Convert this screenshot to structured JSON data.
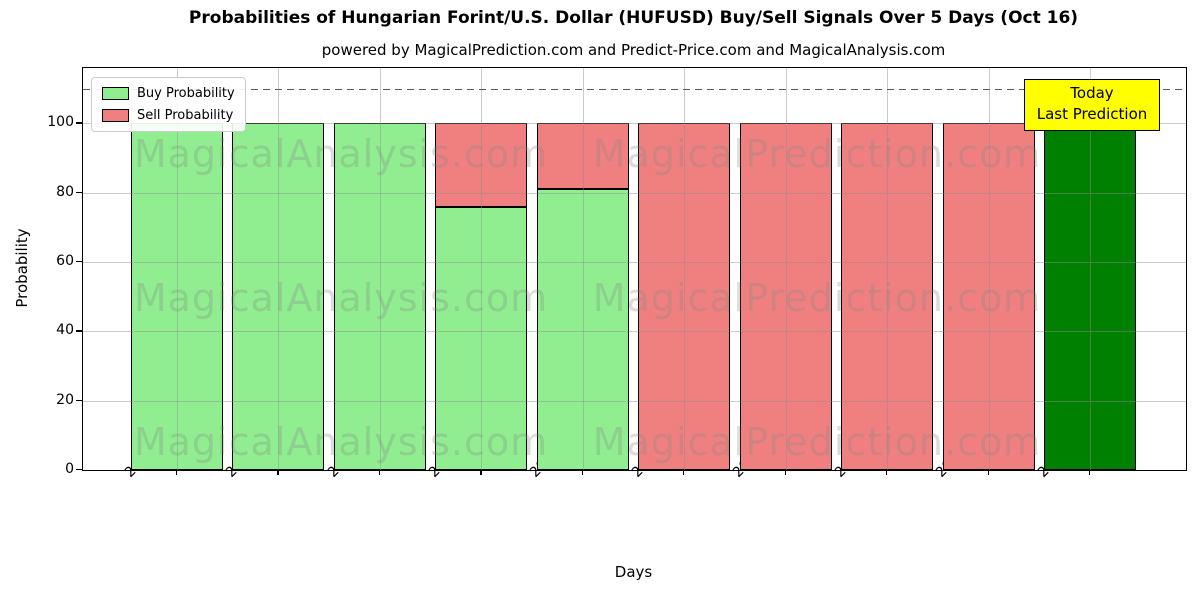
{
  "title": "Probabilities of Hungarian Forint/U.S. Dollar (HUFUSD) Buy/Sell Signals Over 5 Days (Oct 16)",
  "subtitle": "powered by MagicalPrediction.com and Predict-Price.com and MagicalAnalysis.com",
  "axes": {
    "x_label": "Days",
    "y_label": "Probability",
    "y_ticks": [
      0,
      20,
      40,
      60,
      80,
      100
    ]
  },
  "legend": {
    "items": [
      {
        "label": "Buy Probability",
        "color": "#90EE90"
      },
      {
        "label": "Sell Probability",
        "color": "#F08080"
      }
    ]
  },
  "annotation": {
    "line1": "Today",
    "line2": "Last Prediction",
    "bg_color": "#FFFF00"
  },
  "watermarks": {
    "left": "MagicalAnalysis.com",
    "right": "MagicalPrediction.com"
  },
  "colors": {
    "buy": "#90EE90",
    "sell": "#F08080",
    "today_buy": "#008000",
    "edge": "#000000",
    "grid": "#bdbdbd",
    "threshold": "#595959"
  },
  "chart_data": {
    "type": "bar",
    "stacked": true,
    "categories": [
      "2025-10-02",
      "2025-10-03",
      "2025-10-06",
      "2025-10-07",
      "2025-10-08",
      "2025-10-09",
      "2025-10-10",
      "2025-10-13",
      "2025-10-14",
      "2025-10-15"
    ],
    "series": [
      {
        "name": "Buy Probability",
        "values": [
          100,
          100,
          100,
          76,
          81,
          0,
          0,
          0,
          0,
          100
        ]
      },
      {
        "name": "Sell Probability",
        "values": [
          0,
          0,
          0,
          24,
          19,
          100,
          100,
          100,
          100,
          0
        ]
      }
    ],
    "today_index": 9,
    "title": "Probabilities of Hungarian Forint/U.S. Dollar (HUFUSD) Buy/Sell Signals Over 5 Days (Oct 16)",
    "xlabel": "Days",
    "ylabel": "Probability",
    "ylim": [
      0,
      116
    ],
    "grid": true,
    "legend_position": "upper left",
    "threshold_line": {
      "y": 110,
      "style": "dashed"
    }
  }
}
